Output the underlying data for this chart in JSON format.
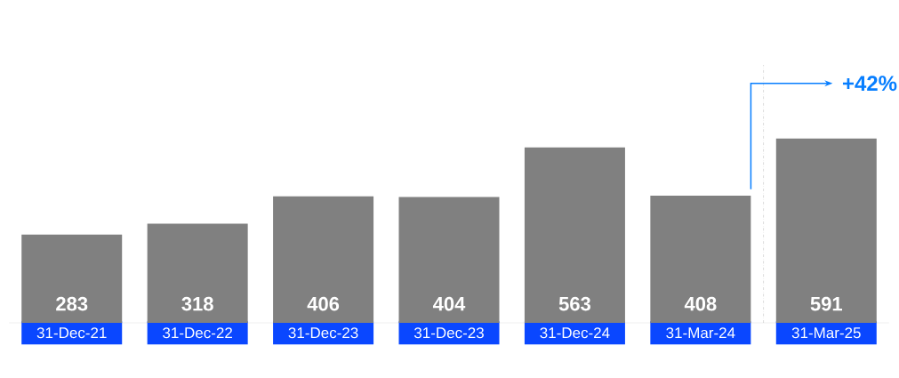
{
  "chart_data": {
    "type": "bar",
    "categories": [
      "31-Dec-21",
      "31-Dec-22",
      "31-Dec-23",
      "31-Dec-23",
      "31-Dec-24",
      "31-Mar-24",
      "31-Mar-25"
    ],
    "values": [
      283,
      318,
      406,
      404,
      563,
      408,
      591
    ],
    "color": "#808080",
    "data_labels": true,
    "annotations": [
      "+42%"
    ]
  }
}
